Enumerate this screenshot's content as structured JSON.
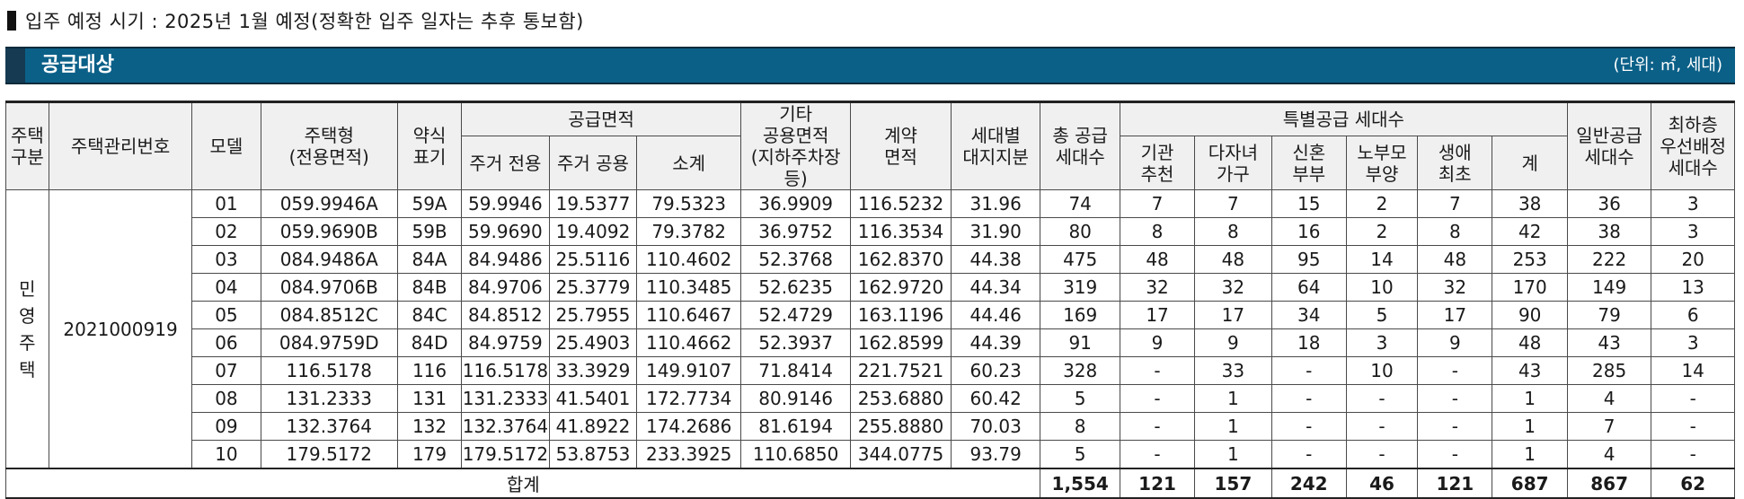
{
  "notice": "입주 예정 시기 : 2025년 1월 예정(정확한 입주 일자는 추후 통보함)",
  "section": {
    "title": "공급대상",
    "unit": "(단위: ㎡, 세대)"
  },
  "headers": {
    "type_group": "주택\n구분",
    "mgmt_no": "주택관리번호",
    "model": "모델",
    "house_type": "주택형\n(전용면적)",
    "abbr": "약식\n표기",
    "supply_area": "공급면적",
    "res_exclusive": "주거 전용",
    "res_common": "주거 공용",
    "subtotal": "소계",
    "other_common": "기타\n공용면적\n(지하주차장등)",
    "contract_area": "계약\n면적",
    "land_share": "세대별\n대지지분",
    "total_supply": "총 공급\n세대수",
    "special": "특별공급 세대수",
    "sp_inst": "기관\n추천",
    "sp_multi": "다자녀\n가구",
    "sp_newlywed": "신혼\n부부",
    "sp_parents": "노부모\n부양",
    "sp_first": "생애\n최초",
    "sp_sum": "계",
    "general": "일반공급\n세대수",
    "lowest_floor": "최하층\n우선배정\n세대수"
  },
  "group_label": "민\n영\n주\n택",
  "mgmt_number": "2021000919",
  "rows": [
    [
      "01",
      "059.9946A",
      "59A",
      "59.9946",
      "19.5377",
      "79.5323",
      "36.9909",
      "116.5232",
      "31.96",
      "74",
      "7",
      "7",
      "15",
      "2",
      "7",
      "38",
      "36",
      "3"
    ],
    [
      "02",
      "059.9690B",
      "59B",
      "59.9690",
      "19.4092",
      "79.3782",
      "36.9752",
      "116.3534",
      "31.90",
      "80",
      "8",
      "8",
      "16",
      "2",
      "8",
      "42",
      "38",
      "3"
    ],
    [
      "03",
      "084.9486A",
      "84A",
      "84.9486",
      "25.5116",
      "110.4602",
      "52.3768",
      "162.8370",
      "44.38",
      "475",
      "48",
      "48",
      "95",
      "14",
      "48",
      "253",
      "222",
      "20"
    ],
    [
      "04",
      "084.9706B",
      "84B",
      "84.9706",
      "25.3779",
      "110.3485",
      "52.6235",
      "162.9720",
      "44.34",
      "319",
      "32",
      "32",
      "64",
      "10",
      "32",
      "170",
      "149",
      "13"
    ],
    [
      "05",
      "084.8512C",
      "84C",
      "84.8512",
      "25.7955",
      "110.6467",
      "52.4729",
      "163.1196",
      "44.46",
      "169",
      "17",
      "17",
      "34",
      "5",
      "17",
      "90",
      "79",
      "6"
    ],
    [
      "06",
      "084.9759D",
      "84D",
      "84.9759",
      "25.4903",
      "110.4662",
      "52.3937",
      "162.8599",
      "44.39",
      "91",
      "9",
      "9",
      "18",
      "3",
      "9",
      "48",
      "43",
      "3"
    ],
    [
      "07",
      "116.5178",
      "116",
      "116.5178",
      "33.3929",
      "149.9107",
      "71.8414",
      "221.7521",
      "60.23",
      "328",
      "-",
      "33",
      "-",
      "10",
      "-",
      "43",
      "285",
      "14"
    ],
    [
      "08",
      "131.2333",
      "131",
      "131.2333",
      "41.5401",
      "172.7734",
      "80.9146",
      "253.6880",
      "60.42",
      "5",
      "-",
      "1",
      "-",
      "-",
      "-",
      "1",
      "4",
      "-"
    ],
    [
      "09",
      "132.3764",
      "132",
      "132.3764",
      "41.8922",
      "174.2686",
      "81.6194",
      "255.8880",
      "70.03",
      "8",
      "-",
      "1",
      "-",
      "-",
      "-",
      "1",
      "7",
      "-"
    ],
    [
      "10",
      "179.5172",
      "179",
      "179.5172",
      "53.8753",
      "233.3925",
      "110.6850",
      "344.0775",
      "93.79",
      "5",
      "-",
      "1",
      "-",
      "-",
      "-",
      "1",
      "4",
      "-"
    ]
  ],
  "total": {
    "label": "합계",
    "values": [
      "1,554",
      "121",
      "157",
      "242",
      "46",
      "121",
      "687",
      "867",
      "62"
    ]
  }
}
